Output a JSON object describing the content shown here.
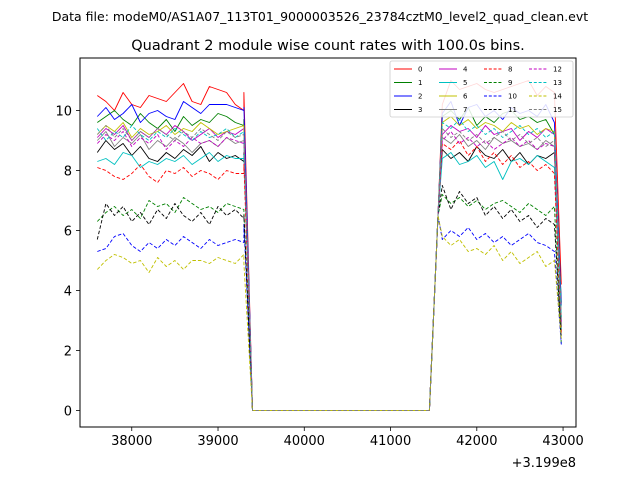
{
  "chart_data": {
    "type": "line",
    "suptitle": "Data file: modeM0/AS1A07_113T01_9000003526_23784cztM0_level2_quad_clean.evt",
    "title": "Quadrant 2 module wise count rates with 100.0s bins.",
    "xlabel": "",
    "ylabel": "",
    "x_offset_label": "+3.199e8",
    "xlim": [
      37400,
      43150
    ],
    "ylim": [
      -0.55,
      11.75
    ],
    "xticks": [
      38000,
      39000,
      40000,
      41000,
      42000,
      43000
    ],
    "xtick_labels": [
      "38000",
      "39000",
      "40000",
      "41000",
      "42000",
      "43000"
    ],
    "yticks": [
      0,
      2,
      4,
      6,
      8,
      10
    ],
    "ytick_labels": [
      "0",
      "2",
      "4",
      "6",
      "8",
      "10"
    ],
    "grid": false,
    "legend_position": "top-right",
    "legend_columns": 4,
    "segments": [
      {
        "start": 37600,
        "end": 39300
      },
      {
        "start": 41600,
        "end": 42900
      }
    ],
    "gap": {
      "drop": 39400,
      "x_start": 39500,
      "x_end": 41450,
      "rise": 41550
    },
    "series": [
      {
        "name": "0",
        "color": "#ff0000",
        "dash": "solid",
        "seg1": [
          10.5,
          10.3,
          10.0,
          10.6,
          10.2,
          10.1,
          10.5,
          10.4,
          10.3,
          10.6,
          10.9,
          10.3,
          10.2,
          10.8,
          10.7,
          10.6,
          10.2,
          10.0
        ],
        "seg1_last": 10.6,
        "seg2": [
          10.2,
          11.0,
          10.7,
          10.8,
          10.9,
          10.7,
          10.6,
          10.7,
          10.8,
          10.9,
          11.0,
          10.5,
          10.8,
          10.6
        ],
        "seg2_last": 4.2
      },
      {
        "name": "1",
        "color": "#008000",
        "dash": "solid",
        "seg1": [
          9.6,
          9.8,
          10.0,
          9.7,
          9.5,
          9.9,
          9.6,
          9.4,
          9.7,
          9.3,
          9.8,
          9.5,
          9.7,
          9.6,
          9.9,
          9.8,
          9.6,
          9.5
        ],
        "seg1_last": 9.7,
        "seg2": [
          9.8,
          10.0,
          9.7,
          10.1,
          9.5,
          9.8,
          9.6,
          9.9,
          10.0,
          9.7,
          9.8,
          9.6,
          9.7,
          9.2
        ],
        "seg2_last": 3.6
      },
      {
        "name": "2",
        "color": "#0000ff",
        "dash": "solid",
        "seg1": [
          9.8,
          10.1,
          9.7,
          9.9,
          10.2,
          9.6,
          9.9,
          10.0,
          9.8,
          9.7,
          10.3,
          10.1,
          9.9,
          10.2,
          10.2,
          10.2,
          10.1,
          10.0
        ],
        "seg1_last": 10.1,
        "seg2": [
          9.9,
          10.3,
          9.5,
          10.1,
          10.2,
          9.8,
          10.0,
          9.7,
          10.1,
          9.9,
          10.0,
          9.8,
          10.2,
          9.6
        ],
        "seg2_last": 3.5
      },
      {
        "name": "3",
        "color": "#000000",
        "dash": "solid",
        "seg1": [
          8.6,
          9.0,
          8.7,
          8.9,
          8.5,
          8.8,
          8.4,
          8.3,
          8.6,
          8.4,
          8.7,
          8.5,
          8.8,
          8.3,
          8.6,
          8.4,
          8.5,
          8.3
        ],
        "seg1_last": 8.6,
        "seg2": [
          8.7,
          8.4,
          8.6,
          8.3,
          8.8,
          8.5,
          8.4,
          8.7,
          8.3,
          8.6,
          8.2,
          8.5,
          8.4,
          8.6
        ],
        "seg2_last": 2.8
      },
      {
        "name": "4",
        "color": "#c000c0",
        "dash": "solid",
        "seg1": [
          9.1,
          9.4,
          9.2,
          9.5,
          9.0,
          9.3,
          9.1,
          9.4,
          9.2,
          9.5,
          9.3,
          9.0,
          9.2,
          9.4,
          9.1,
          9.3,
          9.2,
          9.4
        ],
        "seg1_last": 9.3,
        "seg2": [
          9.2,
          9.5,
          9.3,
          9.4,
          9.1,
          9.5,
          9.2,
          9.3,
          9.4,
          9.0,
          9.3,
          9.1,
          9.4,
          9.2
        ],
        "seg2_last": 3.0
      },
      {
        "name": "5",
        "color": "#00c0c0",
        "dash": "solid",
        "seg1": [
          8.3,
          8.4,
          8.2,
          8.6,
          8.5,
          8.1,
          8.3,
          8.2,
          8.4,
          8.3,
          8.5,
          8.2,
          8.4,
          8.6,
          8.3,
          8.5,
          8.4,
          8.4
        ],
        "seg1_last": 8.5,
        "seg2": [
          8.4,
          8.6,
          8.2,
          8.3,
          8.5,
          8.1,
          8.3,
          7.7,
          8.3,
          8.4,
          8.2,
          8.5,
          8.3,
          8.1
        ],
        "seg2_last": 2.7
      },
      {
        "name": "6",
        "color": "#c0c000",
        "dash": "solid",
        "seg1": [
          9.2,
          9.5,
          9.3,
          9.6,
          9.1,
          9.4,
          9.2,
          9.3,
          9.5,
          9.2,
          9.4,
          9.3,
          9.6,
          9.4,
          9.2,
          9.3,
          9.4,
          9.5
        ],
        "seg1_last": 9.2,
        "seg2": [
          9.6,
          9.8,
          9.5,
          9.7,
          9.4,
          9.6,
          9.5,
          9.3,
          9.6,
          9.4,
          9.5,
          9.2,
          9.4,
          9.3
        ],
        "seg2_last": 3.1
      },
      {
        "name": "7",
        "color": "#808080",
        "dash": "solid",
        "seg1": [
          9.0,
          9.3,
          8.8,
          9.1,
          8.9,
          9.2,
          8.7,
          9.0,
          8.8,
          9.1,
          8.9,
          8.6,
          8.9,
          9.0,
          8.8,
          9.1,
          8.9,
          9.0
        ],
        "seg1_last": 8.9,
        "seg2": [
          9.1,
          8.9,
          9.2,
          8.8,
          9.0,
          8.7,
          9.1,
          8.9,
          9.0,
          8.8,
          8.9,
          8.7,
          9.0,
          8.8
        ],
        "seg2_last": 2.9
      },
      {
        "name": "8",
        "color": "#ff0000",
        "dash": "dashed",
        "seg1": [
          8.1,
          8.0,
          7.8,
          7.7,
          7.9,
          8.2,
          7.8,
          7.6,
          8.0,
          7.9,
          8.1,
          7.8,
          8.0,
          7.9,
          7.7,
          8.0,
          7.9,
          7.9
        ],
        "seg1_last": 8.2,
        "seg2": [
          8.9,
          8.7,
          9.0,
          8.5,
          8.8,
          8.3,
          8.6,
          8.2,
          8.5,
          8.1,
          8.3,
          8.0,
          8.2,
          7.9
        ],
        "seg2_last": 2.6
      },
      {
        "name": "9",
        "color": "#008000",
        "dash": "dashed",
        "seg1": [
          6.3,
          6.6,
          6.8,
          6.5,
          6.7,
          6.4,
          7.0,
          6.8,
          6.9,
          6.6,
          7.1,
          6.9,
          6.7,
          6.8,
          6.6,
          6.9,
          6.8,
          6.7
        ],
        "seg1_last": 6.6,
        "seg2": [
          7.2,
          6.9,
          7.1,
          6.8,
          7.0,
          6.7,
          6.9,
          7.0,
          6.8,
          6.6,
          6.9,
          6.7,
          6.5,
          6.8
        ],
        "seg2_last": 2.2
      },
      {
        "name": "10",
        "color": "#0000ff",
        "dash": "dashed",
        "seg1": [
          5.3,
          5.4,
          5.8,
          5.9,
          5.5,
          5.3,
          5.6,
          5.4,
          5.7,
          5.5,
          5.8,
          5.6,
          5.4,
          5.7,
          5.5,
          5.6,
          5.7,
          5.6
        ],
        "seg1_last": 6.2,
        "seg2": [
          5.7,
          6.0,
          5.8,
          6.1,
          5.7,
          5.9,
          5.6,
          5.8,
          5.5,
          5.7,
          5.9,
          5.6,
          5.5,
          5.3
        ],
        "seg2_last": 2.2
      },
      {
        "name": "11",
        "color": "#000000",
        "dash": "dashed",
        "seg1": [
          5.7,
          6.9,
          6.5,
          6.8,
          6.3,
          6.6,
          6.2,
          6.7,
          6.4,
          6.9,
          6.5,
          6.3,
          6.6,
          6.2,
          6.8,
          6.5,
          6.7,
          6.4
        ],
        "seg1_last": 6.5,
        "seg2": [
          7.5,
          6.7,
          7.3,
          6.9,
          7.1,
          6.5,
          6.8,
          6.4,
          6.7,
          6.3,
          6.5,
          6.1,
          6.4,
          6.2
        ],
        "seg2_last": 2.4
      },
      {
        "name": "12",
        "color": "#c000c0",
        "dash": "dashed",
        "seg1": [
          8.9,
          9.2,
          9.0,
          9.3,
          8.8,
          9.1,
          8.9,
          9.2,
          8.7,
          9.0,
          8.8,
          9.1,
          8.9,
          9.0,
          8.8,
          9.1,
          9.0,
          8.9
        ],
        "seg1_last": 9.0,
        "seg2": [
          9.0,
          9.3,
          8.9,
          9.1,
          8.8,
          9.0,
          8.7,
          8.9,
          9.1,
          8.8,
          9.0,
          8.7,
          8.9,
          8.8
        ],
        "seg2_last": 2.9
      },
      {
        "name": "13",
        "color": "#00c0c0",
        "dash": "dashed",
        "seg1": [
          9.4,
          9.0,
          9.3,
          9.1,
          9.5,
          9.2,
          9.0,
          9.3,
          9.1,
          9.4,
          9.2,
          9.0,
          9.3,
          9.1,
          9.2,
          9.4,
          9.1,
          9.3
        ],
        "seg1_last": 9.2,
        "seg2": [
          9.6,
          9.4,
          9.7,
          9.3,
          9.5,
          9.2,
          9.4,
          9.1,
          9.3,
          9.5,
          9.2,
          9.4,
          9.1,
          9.3
        ],
        "seg2_last": 3.1
      },
      {
        "name": "14",
        "color": "#c0c000",
        "dash": "dashed",
        "seg1": [
          4.7,
          5.0,
          5.2,
          5.1,
          4.9,
          5.0,
          4.6,
          5.1,
          4.8,
          5.0,
          4.7,
          5.0,
          5.0,
          4.9,
          5.1,
          5.0,
          4.9,
          5.2
        ],
        "seg1_last": 4.9,
        "seg2": [
          5.8,
          5.5,
          5.7,
          5.3,
          5.4,
          5.2,
          5.5,
          5.0,
          5.3,
          4.9,
          5.1,
          5.3,
          4.8,
          5.0
        ],
        "seg2_last": 2.4
      },
      {
        "name": "15",
        "color": "#808080",
        "dash": "dashed",
        "seg1": [
          9.2,
          9.5,
          9.1,
          9.4,
          9.0,
          9.3,
          9.1,
          9.4,
          9.2,
          9.0,
          9.3,
          9.1,
          9.4,
          9.2,
          9.0,
          9.3,
          9.1,
          9.2
        ],
        "seg1_last": 9.1,
        "seg2": [
          9.4,
          9.1,
          9.3,
          9.0,
          9.2,
          8.9,
          9.1,
          9.3,
          9.0,
          9.2,
          8.9,
          9.1,
          8.8,
          9.0
        ],
        "seg2_last": 2.8
      }
    ]
  }
}
